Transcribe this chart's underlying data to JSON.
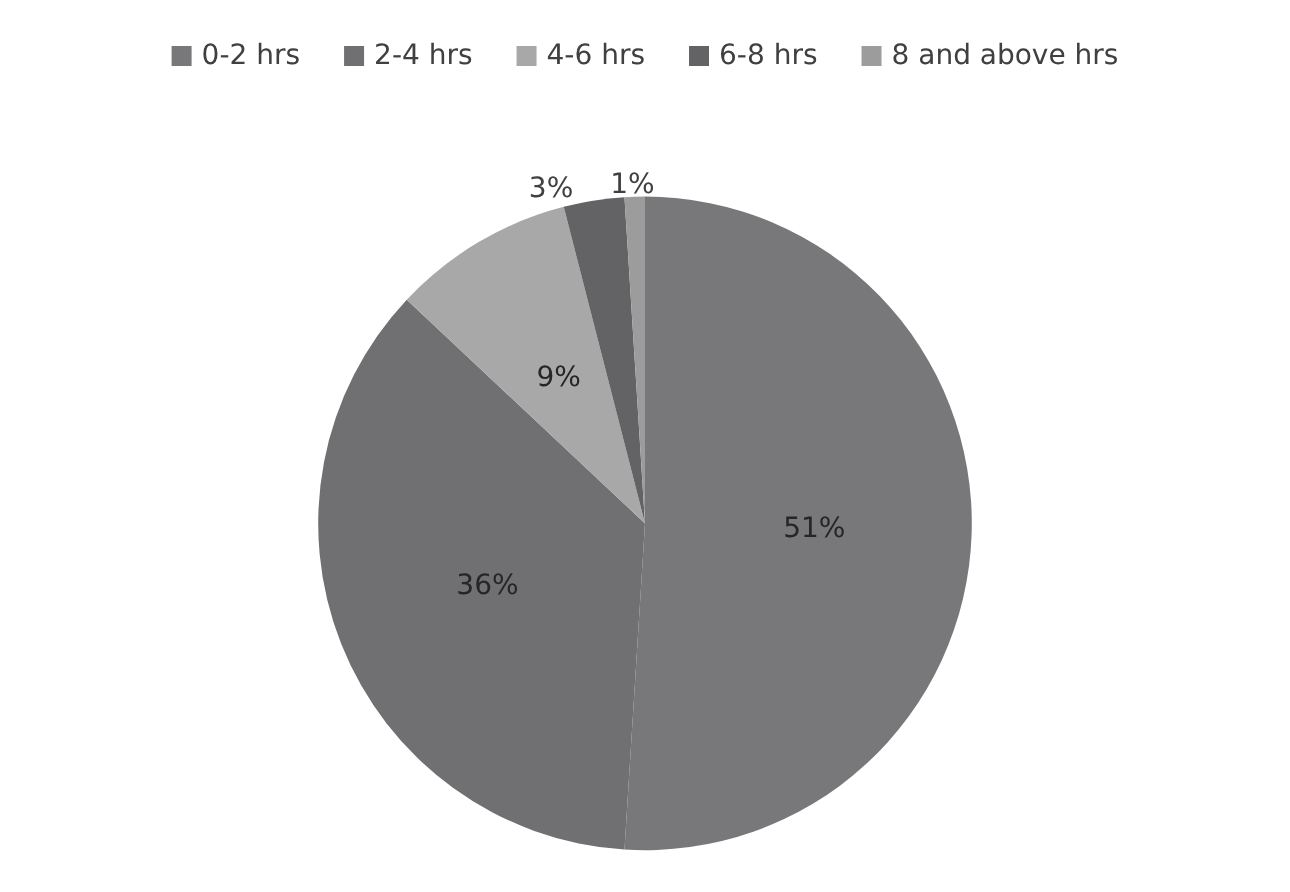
{
  "chart_data": {
    "type": "pie",
    "categories": [
      "0-2 hrs",
      "2-4 hrs",
      "4-6 hrs",
      "6-8 hrs",
      "8 and above hrs"
    ],
    "values": [
      51,
      36,
      9,
      3,
      1
    ],
    "value_labels": [
      "51%",
      "36%",
      "9%",
      "3%",
      "1%"
    ],
    "colors": [
      "#78787b",
      "#707072",
      "#a8a8a8",
      "#636365",
      "#9c9c9c"
    ],
    "legend": "top"
  }
}
